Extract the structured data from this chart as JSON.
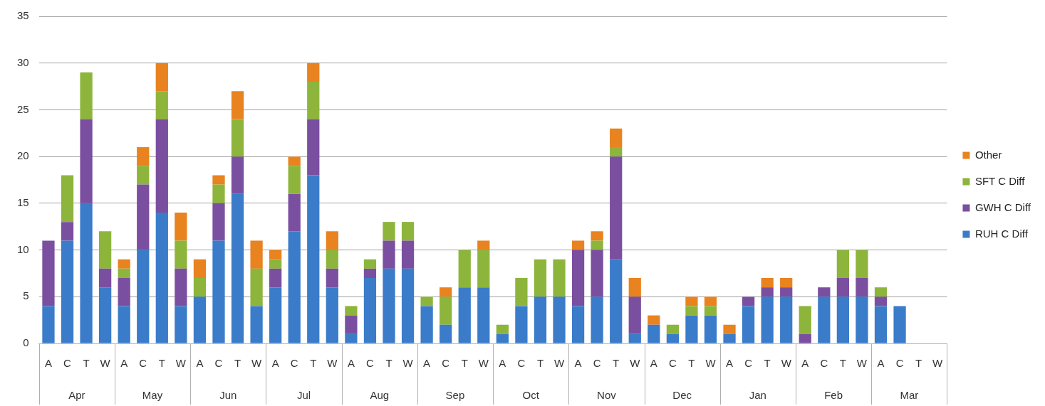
{
  "chart_data": {
    "type": "bar",
    "stacked": true,
    "categories": [
      "A",
      "C",
      "T",
      "W",
      "A",
      "C",
      "T",
      "W",
      "A",
      "C",
      "T",
      "W",
      "A",
      "C",
      "T",
      "W",
      "A",
      "C",
      "T",
      "W",
      "A",
      "C",
      "T",
      "W",
      "A",
      "C",
      "T",
      "W",
      "A",
      "C",
      "T",
      "W",
      "A",
      "C",
      "T",
      "W",
      "A",
      "C",
      "T",
      "W",
      "A",
      "C",
      "T",
      "W",
      "A",
      "C",
      "T",
      "W"
    ],
    "series": [
      {
        "name": "RUH C Diff",
        "color": "#3a7cc9",
        "values": [
          4,
          11,
          15,
          6,
          4,
          10,
          14,
          4,
          5,
          11,
          16,
          4,
          6,
          12,
          18,
          6,
          1,
          7,
          8,
          8,
          4,
          2,
          6,
          6,
          1,
          4,
          5,
          5,
          4,
          5,
          9,
          1,
          2,
          1,
          3,
          3,
          1,
          4,
          5,
          5,
          0,
          5,
          5,
          5,
          4,
          4,
          0,
          0
        ]
      },
      {
        "name": "GWH C Diff",
        "color": "#7b4fa0",
        "values": [
          7,
          2,
          9,
          2,
          3,
          7,
          10,
          4,
          0,
          4,
          4,
          0,
          2,
          4,
          6,
          2,
          2,
          1,
          3,
          3,
          0,
          0,
          0,
          0,
          0,
          0,
          0,
          0,
          6,
          5,
          11,
          4,
          0,
          0,
          0,
          0,
          0,
          1,
          1,
          1,
          1,
          1,
          2,
          2,
          1,
          0,
          0,
          0
        ]
      },
      {
        "name": "SFT C Diff",
        "color": "#8db53c",
        "values": [
          0,
          5,
          5,
          4,
          1,
          2,
          3,
          3,
          2,
          2,
          4,
          4,
          1,
          3,
          4,
          2,
          1,
          1,
          2,
          2,
          1,
          3,
          4,
          4,
          1,
          3,
          4,
          4,
          0,
          1,
          1,
          0,
          0,
          1,
          1,
          1,
          0,
          0,
          0,
          0,
          3,
          0,
          3,
          3,
          1,
          0,
          0,
          0
        ]
      },
      {
        "name": "Other",
        "color": "#e8831f",
        "values": [
          0,
          0,
          0,
          0,
          1,
          2,
          3,
          3,
          2,
          1,
          3,
          3,
          1,
          1,
          2,
          2,
          0,
          0,
          0,
          0,
          0,
          1,
          0,
          1,
          0,
          0,
          0,
          0,
          1,
          1,
          2,
          2,
          1,
          0,
          1,
          1,
          1,
          0,
          1,
          1,
          0,
          0,
          0,
          0,
          0,
          0,
          0,
          0
        ]
      }
    ],
    "annotations": [
      "Apr",
      "May",
      "Jun",
      "Jul",
      "Aug",
      "Sep",
      "Oct",
      "Nov",
      "Dec",
      "Jan",
      "Feb",
      "Mar"
    ],
    "ylim": [
      0,
      35
    ],
    "yticks": [
      0,
      5,
      10,
      15,
      20,
      25,
      30,
      35
    ],
    "grid": "y",
    "legend": "right"
  }
}
